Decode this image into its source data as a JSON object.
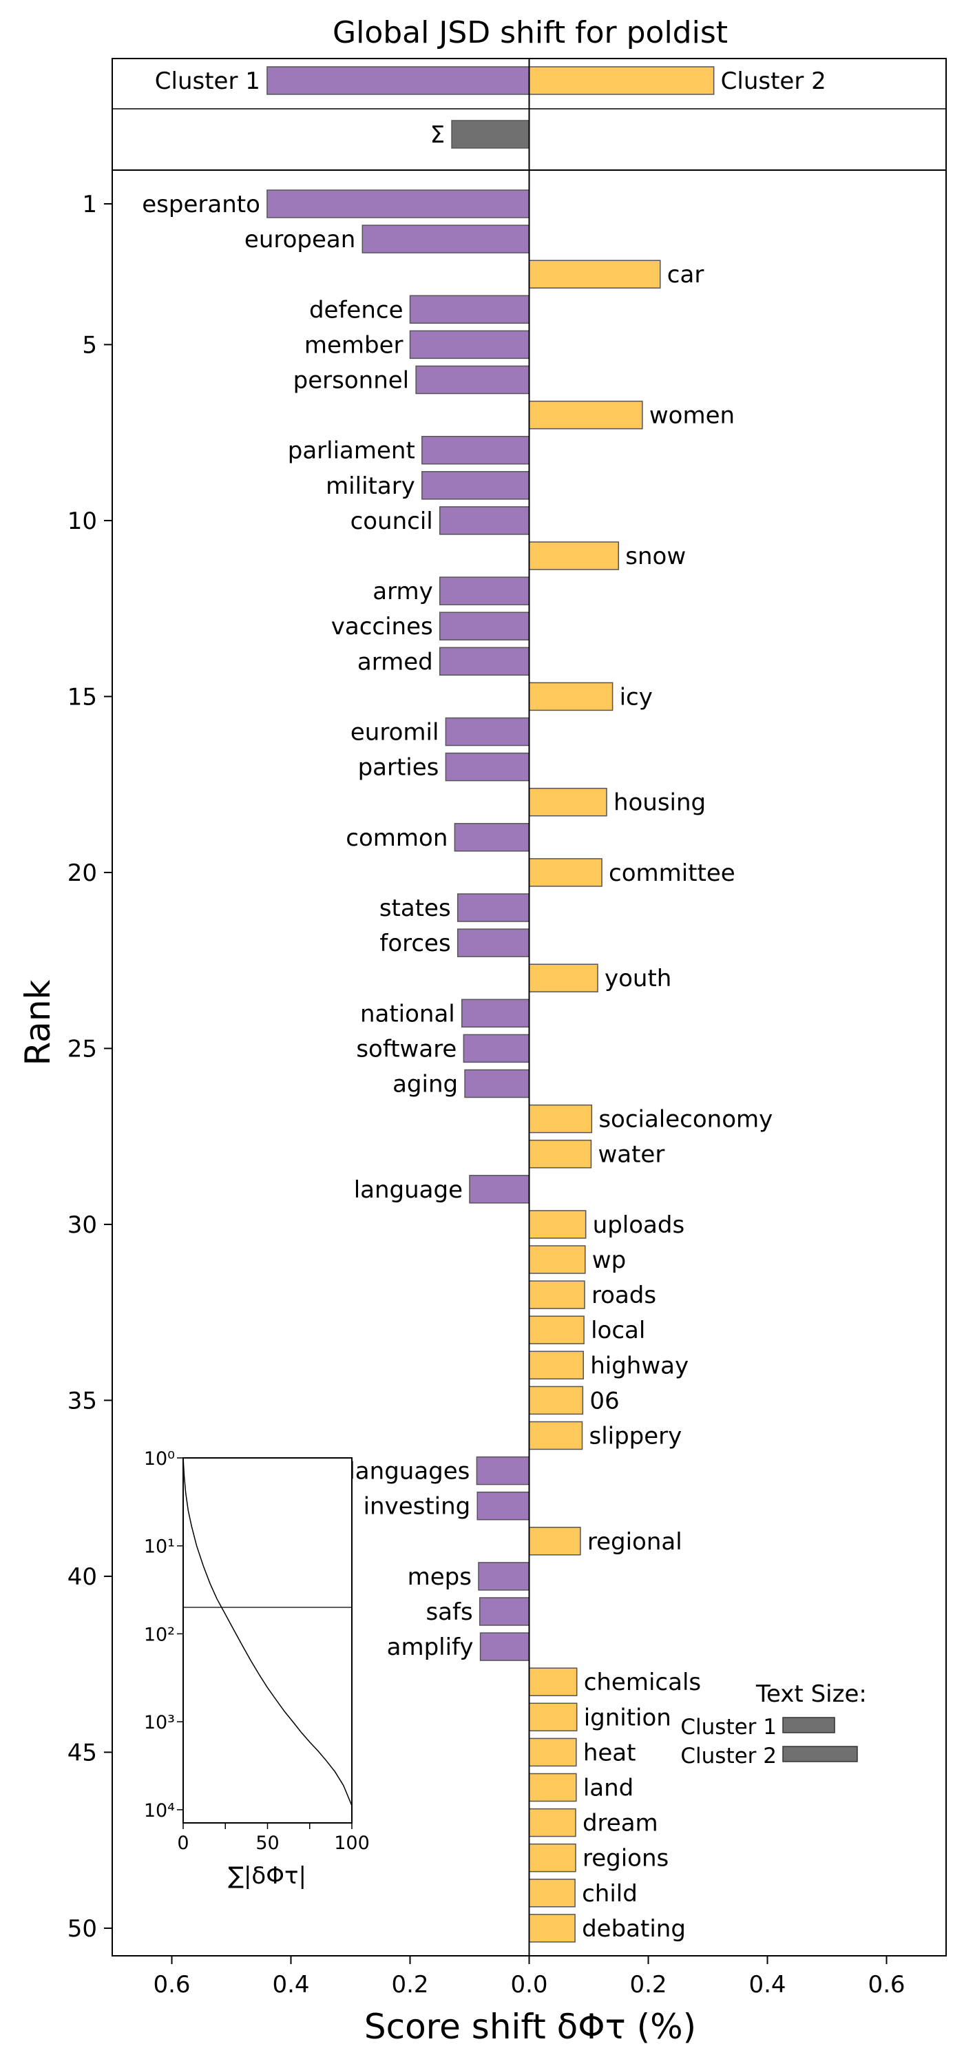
{
  "chart_data": {
    "type": "bar",
    "title": "Global JSD shift for poldist",
    "xlabel": "Score shift δΦτ (%)",
    "ylabel": "Rank",
    "xlim": [
      -0.7,
      0.7
    ],
    "x_ticks": [
      -0.6,
      -0.4,
      -0.2,
      0.0,
      0.2,
      0.4,
      0.6
    ],
    "x_tick_labels": [
      "0.6",
      "0.4",
      "0.2",
      "0.0",
      "0.2",
      "0.4",
      "0.6"
    ],
    "y_ticks": [
      1,
      5,
      10,
      15,
      20,
      25,
      30,
      35,
      40,
      45,
      50
    ],
    "y_tick_labels": [
      "1",
      "5",
      "10",
      "15",
      "20",
      "25",
      "30",
      "35",
      "40",
      "45",
      "50"
    ],
    "colors": {
      "cluster1": "#9e79b9",
      "cluster2": "#fec85a",
      "sum": "#707070",
      "edge": "#555555"
    },
    "totals": {
      "cluster1_label": "Cluster 1",
      "cluster1_value": -0.44,
      "cluster2_label": "Cluster 2",
      "cluster2_value": 0.31,
      "sum_label": "Σ",
      "sum_value": -0.13
    },
    "bars": [
      {
        "rank": 1,
        "word": "esperanto",
        "value": -0.44
      },
      {
        "rank": 2,
        "word": "european",
        "value": -0.28
      },
      {
        "rank": 3,
        "word": "car",
        "value": 0.22
      },
      {
        "rank": 4,
        "word": "defence",
        "value": -0.2
      },
      {
        "rank": 5,
        "word": "member",
        "value": -0.2
      },
      {
        "rank": 6,
        "word": "personnel",
        "value": -0.19
      },
      {
        "rank": 7,
        "word": "women",
        "value": 0.19
      },
      {
        "rank": 8,
        "word": "parliament",
        "value": -0.18
      },
      {
        "rank": 9,
        "word": "military",
        "value": -0.18
      },
      {
        "rank": 10,
        "word": "council",
        "value": -0.15
      },
      {
        "rank": 11,
        "word": "snow",
        "value": 0.15
      },
      {
        "rank": 12,
        "word": "army",
        "value": -0.15
      },
      {
        "rank": 13,
        "word": "vaccines",
        "value": -0.15
      },
      {
        "rank": 14,
        "word": "armed",
        "value": -0.15
      },
      {
        "rank": 15,
        "word": "icy",
        "value": 0.14
      },
      {
        "rank": 16,
        "word": "euromil",
        "value": -0.14
      },
      {
        "rank": 17,
        "word": "parties",
        "value": -0.14
      },
      {
        "rank": 18,
        "word": "housing",
        "value": 0.13
      },
      {
        "rank": 19,
        "word": "common",
        "value": -0.125
      },
      {
        "rank": 20,
        "word": "committee",
        "value": 0.122
      },
      {
        "rank": 21,
        "word": "states",
        "value": -0.12
      },
      {
        "rank": 22,
        "word": "forces",
        "value": -0.12
      },
      {
        "rank": 23,
        "word": "youth",
        "value": 0.115
      },
      {
        "rank": 24,
        "word": "national",
        "value": -0.113
      },
      {
        "rank": 25,
        "word": "software",
        "value": -0.11
      },
      {
        "rank": 26,
        "word": "aging",
        "value": -0.108
      },
      {
        "rank": 27,
        "word": "socialeconomy",
        "value": 0.105
      },
      {
        "rank": 28,
        "word": "water",
        "value": 0.104
      },
      {
        "rank": 29,
        "word": "language",
        "value": -0.1
      },
      {
        "rank": 30,
        "word": "uploads",
        "value": 0.095
      },
      {
        "rank": 31,
        "word": "wp",
        "value": 0.094
      },
      {
        "rank": 32,
        "word": "roads",
        "value": 0.093
      },
      {
        "rank": 33,
        "word": "local",
        "value": 0.092
      },
      {
        "rank": 34,
        "word": "highway",
        "value": 0.091
      },
      {
        "rank": 35,
        "word": "06",
        "value": 0.09
      },
      {
        "rank": 36,
        "word": "slippery",
        "value": 0.089
      },
      {
        "rank": 37,
        "word": "languages",
        "value": -0.088
      },
      {
        "rank": 38,
        "word": "investing",
        "value": -0.087
      },
      {
        "rank": 39,
        "word": "regional",
        "value": 0.086
      },
      {
        "rank": 40,
        "word": "meps",
        "value": -0.085
      },
      {
        "rank": 41,
        "word": "safs",
        "value": -0.083
      },
      {
        "rank": 42,
        "word": "amplify",
        "value": -0.082
      },
      {
        "rank": 43,
        "word": "chemicals",
        "value": 0.08
      },
      {
        "rank": 44,
        "word": "ignition",
        "value": 0.08
      },
      {
        "rank": 45,
        "word": "heat",
        "value": 0.079
      },
      {
        "rank": 46,
        "word": "land",
        "value": 0.079
      },
      {
        "rank": 47,
        "word": "dream",
        "value": 0.078
      },
      {
        "rank": 48,
        "word": "regions",
        "value": 0.078
      },
      {
        "rank": 49,
        "word": "child",
        "value": 0.077
      },
      {
        "rank": 50,
        "word": "debating",
        "value": 0.077
      }
    ],
    "text_size_legend": {
      "title": "Text Size:",
      "entries": [
        {
          "label": "Cluster 1",
          "relative_size": 0.41
        },
        {
          "label": "Cluster 2",
          "relative_size": 0.59
        }
      ]
    },
    "inset": {
      "type": "line",
      "xlabel": "∑|δΦτ|",
      "xlim": [
        0,
        100
      ],
      "x_ticks": [
        0,
        25,
        50,
        75,
        100
      ],
      "x_tick_labels": [
        "0",
        "",
        "50",
        "",
        "100"
      ],
      "y_scale": "log",
      "y_ticks": [
        1,
        10,
        100,
        1000,
        10000
      ],
      "y_tick_labels": [
        "10⁰",
        "10¹",
        "10²",
        "10³",
        "10⁴"
      ],
      "cutoff_rank": 50,
      "curve": [
        [
          0,
          1
        ],
        [
          0.6,
          1.6
        ],
        [
          1.5,
          2.5
        ],
        [
          3,
          4
        ],
        [
          5,
          6
        ],
        [
          8,
          10
        ],
        [
          12,
          17
        ],
        [
          16,
          27
        ],
        [
          20,
          40
        ],
        [
          25,
          60
        ],
        [
          30,
          90
        ],
        [
          35,
          135
        ],
        [
          40,
          200
        ],
        [
          45,
          290
        ],
        [
          50,
          410
        ],
        [
          55,
          560
        ],
        [
          60,
          760
        ],
        [
          65,
          1000
        ],
        [
          70,
          1320
        ],
        [
          75,
          1700
        ],
        [
          80,
          2150
        ],
        [
          85,
          2800
        ],
        [
          90,
          3700
        ],
        [
          95,
          5300
        ],
        [
          100,
          9000
        ]
      ]
    }
  }
}
